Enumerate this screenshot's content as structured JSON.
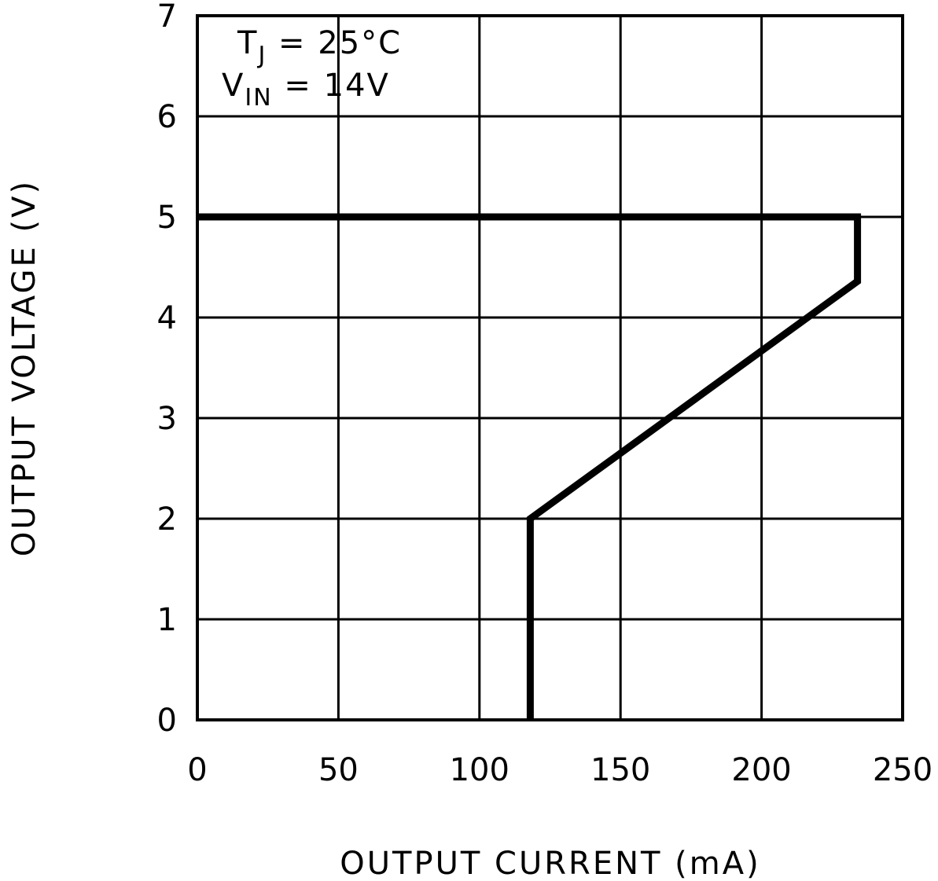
{
  "chart_data": {
    "type": "line",
    "title": "",
    "xlabel": "OUTPUT CURRENT (mA)",
    "ylabel": "OUTPUT VOLTAGE (V)",
    "xlim": [
      0,
      250
    ],
    "ylim": [
      0,
      7
    ],
    "x_ticks": [
      "0",
      "50",
      "100",
      "150",
      "200",
      "250"
    ],
    "y_ticks": [
      "0",
      "1",
      "2",
      "3",
      "4",
      "5",
      "6",
      "7"
    ],
    "grid": true,
    "annotations": [
      {
        "text": "T",
        "subscript": "J",
        "rest": " = 25°C"
      },
      {
        "text": "V",
        "subscript": "IN",
        "rest": " = 14V"
      }
    ],
    "series": [
      {
        "x": [
          0,
          234,
          234,
          118,
          118
        ],
        "y": [
          5.0,
          5.0,
          4.36,
          2.0,
          0.0
        ],
        "color": "#000000"
      }
    ]
  }
}
